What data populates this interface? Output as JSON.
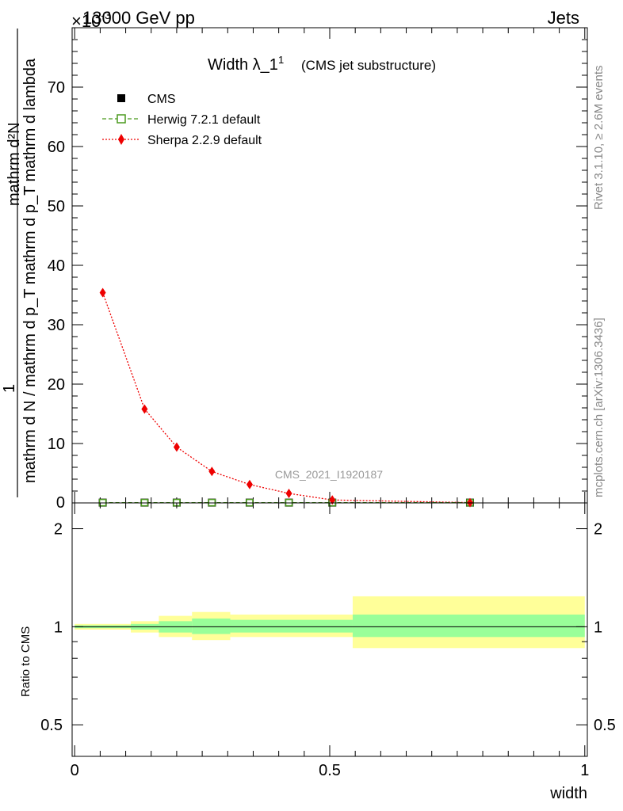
{
  "header": {
    "energy_label": "13000 GeV pp",
    "process_label": "Jets",
    "exponent_label": "×10",
    "exponent_power": "-3"
  },
  "side_labels": {
    "rivet": "Rivet 3.1.10, ≥ 2.6M events",
    "mcplots": "mcplots.cern.ch [arXiv:1306.3436]"
  },
  "watermark": "CMS_2021_I1920187",
  "chart_data": [
    {
      "type": "line",
      "title": "Width λ_1",
      "title_sup": "1",
      "subtitle": "(CMS jet substructure)",
      "ylabel_numerator": "mathrm d²N",
      "ylabel_denominator": "mathrm d N / mathrm d p_T mathrm d p_T mathrm d lambda",
      "ylabel_one": "1",
      "xlim": [
        -0.005,
        1.005
      ],
      "ylim": [
        0,
        80
      ],
      "y_ticks": [
        10,
        20,
        30,
        40,
        50,
        60,
        70
      ],
      "y_tick_labels": [
        "10",
        "20",
        "30",
        "40",
        "50",
        "60",
        "70"
      ],
      "y_zero_label": "0",
      "legend_position": "top-left",
      "series": [
        {
          "name": "CMS",
          "marker": "filled-square",
          "color": "#000000",
          "x": [
            0.055,
            0.137,
            0.2,
            0.269,
            0.343,
            0.42,
            0.505,
            0.775
          ],
          "y": [
            0.05,
            0.05,
            0.05,
            0.05,
            0.05,
            0.05,
            0.05,
            0.05
          ]
        },
        {
          "name": "Herwig 7.2.1 default",
          "marker": "open-square",
          "line": "dashed",
          "color": "#4a9a1e",
          "x": [
            0.055,
            0.137,
            0.2,
            0.269,
            0.343,
            0.42,
            0.505,
            0.775
          ],
          "y": [
            0.05,
            0.05,
            0.05,
            0.05,
            0.05,
            0.05,
            0.05,
            0.05
          ]
        },
        {
          "name": "Sherpa 2.2.9 default",
          "marker": "filled-diamond",
          "line": "dotted",
          "color": "#ee0000",
          "x": [
            0.055,
            0.137,
            0.2,
            0.269,
            0.343,
            0.42,
            0.505,
            0.775
          ],
          "y": [
            35.4,
            15.8,
            9.4,
            5.3,
            3.1,
            1.6,
            0.5,
            0.05
          ]
        }
      ]
    },
    {
      "type": "area",
      "ylabel": "Ratio to CMS",
      "xlabel": "width",
      "xlim": [
        -0.005,
        1.005
      ],
      "ylim": [
        0.4,
        2.4
      ],
      "y_scale": "log",
      "y_ticks": [
        0.5,
        1,
        2
      ],
      "y_tick_labels": [
        "0.5",
        "1",
        "2"
      ],
      "x_ticks": [
        0,
        0.5,
        1
      ],
      "x_tick_labels": [
        "0",
        "0.5",
        "1"
      ],
      "reference_line": 1,
      "bands": {
        "colors": {
          "stat": "#99ff99",
          "total": "#ffff99"
        },
        "bins": [
          {
            "x_lo": 0.0,
            "x_hi": 0.11,
            "stat": [
              0.99,
              1.01
            ],
            "total": [
              0.98,
              1.02
            ]
          },
          {
            "x_lo": 0.11,
            "x_hi": 0.165,
            "stat": [
              0.98,
              1.02
            ],
            "total": [
              0.96,
              1.04
            ]
          },
          {
            "x_lo": 0.165,
            "x_hi": 0.23,
            "stat": [
              0.96,
              1.04
            ],
            "total": [
              0.93,
              1.08
            ]
          },
          {
            "x_lo": 0.23,
            "x_hi": 0.305,
            "stat": [
              0.95,
              1.06
            ],
            "total": [
              0.91,
              1.11
            ]
          },
          {
            "x_lo": 0.305,
            "x_hi": 0.545,
            "stat": [
              0.96,
              1.05
            ],
            "total": [
              0.93,
              1.09
            ]
          },
          {
            "x_lo": 0.545,
            "x_hi": 1.0,
            "stat": [
              0.93,
              1.09
            ],
            "total": [
              0.86,
              1.24
            ]
          }
        ]
      }
    }
  ]
}
